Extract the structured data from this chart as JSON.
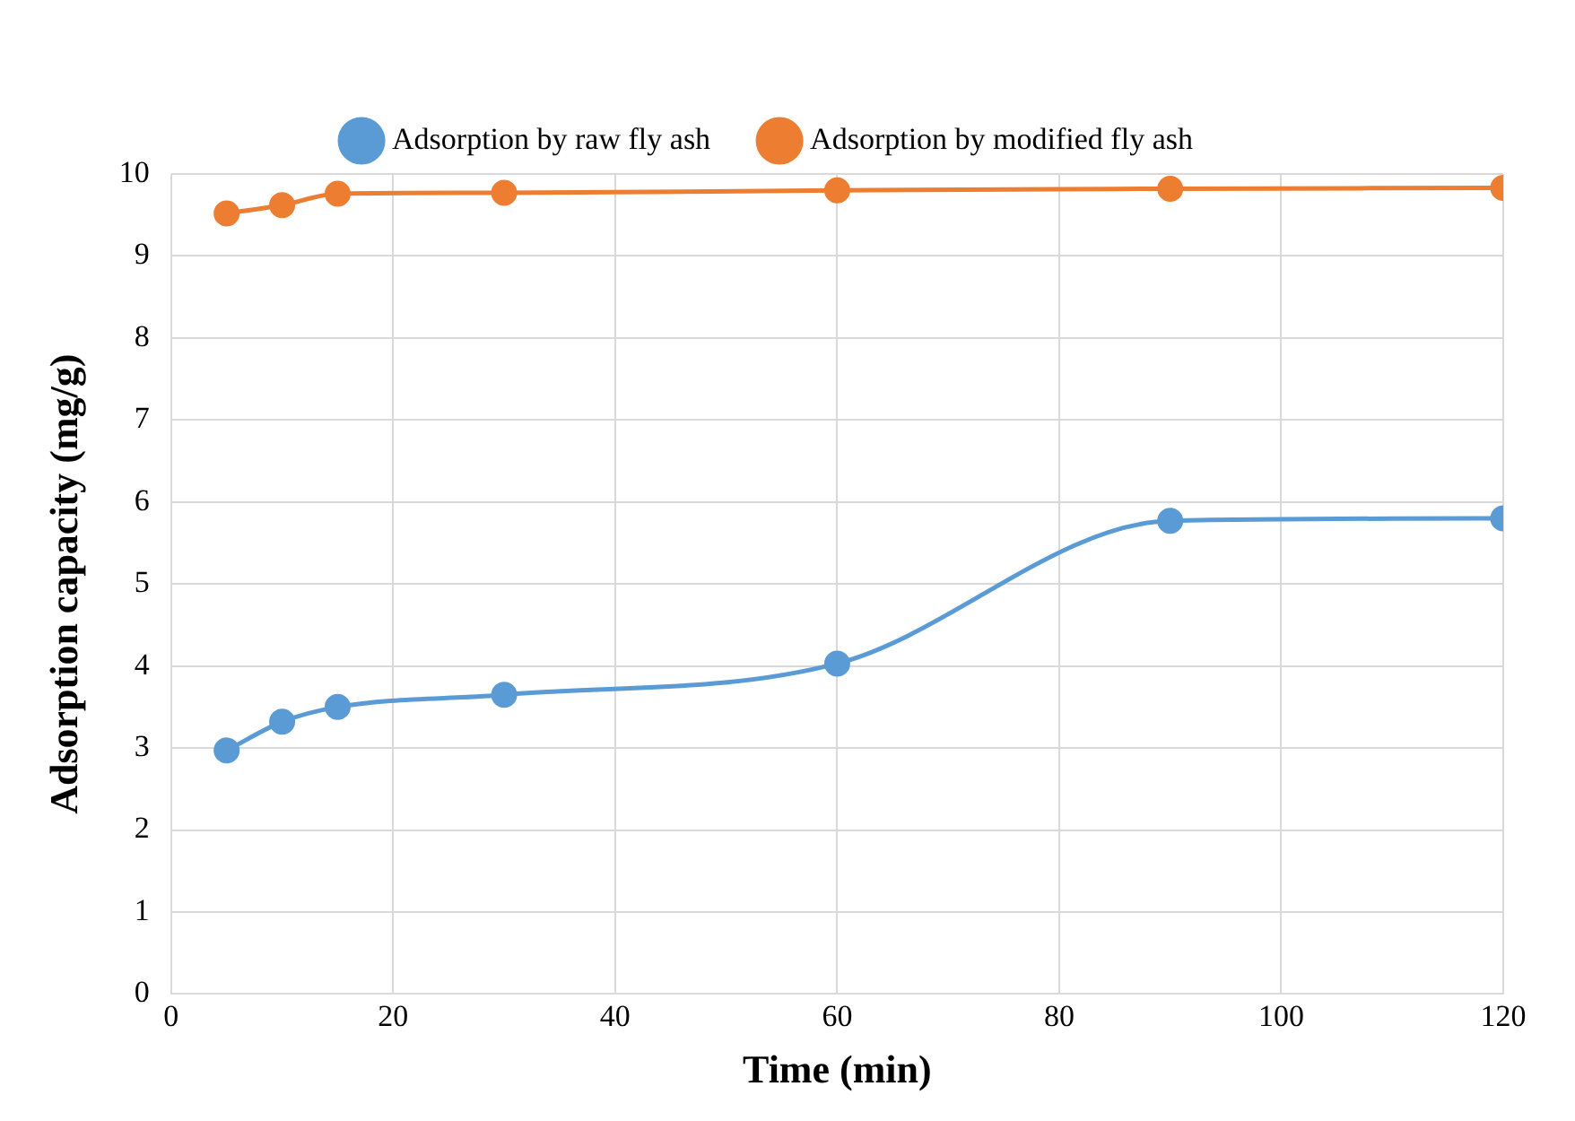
{
  "chart_data": {
    "type": "line",
    "xlabel": "Time (min)",
    "ylabel": "Adsorption capacity (mg/g)",
    "x": [
      5,
      10,
      15,
      30,
      60,
      90,
      120
    ],
    "series": [
      {
        "name": "Adsorption by raw fly ash",
        "color": "#5b9bd5",
        "values": [
          2.97,
          3.32,
          3.5,
          3.65,
          4.03,
          5.77,
          5.8
        ]
      },
      {
        "name": "Adsorption by modified fly ash",
        "color": "#ed7d31",
        "values": [
          9.52,
          9.62,
          9.76,
          9.77,
          9.8,
          9.82,
          9.83
        ]
      }
    ],
    "xlim": [
      0,
      120
    ],
    "xticks": [
      0,
      20,
      40,
      60,
      80,
      100,
      120
    ],
    "ylim": [
      0,
      10
    ],
    "yticks": [
      0,
      1,
      2,
      3,
      4,
      5,
      6,
      7,
      8,
      9,
      10
    ],
    "grid": true,
    "legend": "top",
    "marker": "circle",
    "line_style": "solid"
  }
}
